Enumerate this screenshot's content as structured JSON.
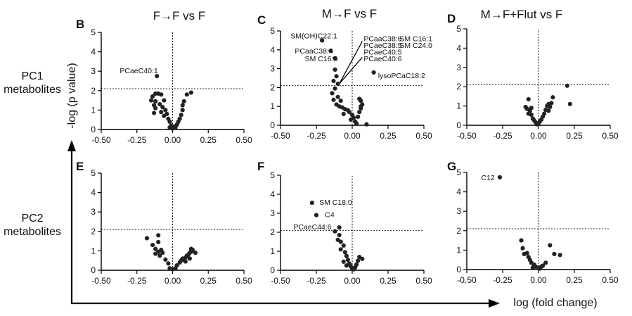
{
  "figure": {
    "column_titles": [
      "F→F vs F",
      "M→F vs F",
      "M→F+Flut vs F"
    ],
    "row_labels": [
      {
        "line1": "PC1",
        "line2": "metabolites"
      },
      {
        "line1": "PC2",
        "line2": "metabolites"
      }
    ],
    "y_axis_label": "-log (p value)",
    "x_axis_label": "log (fold change)",
    "colors": {
      "points": "#222222",
      "axes": "#000000",
      "reference_lines": "#000000"
    }
  },
  "chart_data": [
    {
      "type": "scatter",
      "panel": "B",
      "title": "F→F vs F",
      "xlim": [
        -0.5,
        0.5
      ],
      "ylim": [
        0,
        5
      ],
      "xticks": [
        "-0.50",
        "-0.25",
        "0.00",
        "0.25",
        "0.50"
      ],
      "yticks": [
        "0",
        "1",
        "2",
        "3",
        "4",
        "5"
      ],
      "threshold_y": 2.1,
      "reference_x": 0,
      "points": [
        {
          "x": -0.11,
          "y": 2.75
        },
        {
          "x": -0.12,
          "y": 1.85
        },
        {
          "x": -0.1,
          "y": 1.85
        },
        {
          "x": -0.14,
          "y": 1.7
        },
        {
          "x": -0.08,
          "y": 1.8
        },
        {
          "x": -0.15,
          "y": 1.5
        },
        {
          "x": -0.12,
          "y": 1.45
        },
        {
          "x": -0.06,
          "y": 1.5
        },
        {
          "x": -0.13,
          "y": 1.25
        },
        {
          "x": -0.09,
          "y": 1.3
        },
        {
          "x": -0.07,
          "y": 1.15
        },
        {
          "x": -0.12,
          "y": 1.1
        },
        {
          "x": -0.05,
          "y": 1.0
        },
        {
          "x": -0.13,
          "y": 0.85
        },
        {
          "x": -0.08,
          "y": 0.9
        },
        {
          "x": -0.04,
          "y": 0.8
        },
        {
          "x": -0.06,
          "y": 0.7
        },
        {
          "x": -0.03,
          "y": 0.55
        },
        {
          "x": -0.02,
          "y": 0.4
        },
        {
          "x": -0.01,
          "y": 0.2
        },
        {
          "x": -0.02,
          "y": 0.1
        },
        {
          "x": 0.0,
          "y": 0.05
        },
        {
          "x": 0.01,
          "y": 0.15
        },
        {
          "x": 0.02,
          "y": 0.1
        },
        {
          "x": 0.03,
          "y": 0.25
        },
        {
          "x": 0.04,
          "y": 0.4
        },
        {
          "x": 0.05,
          "y": 0.55
        },
        {
          "x": 0.06,
          "y": 0.75
        },
        {
          "x": 0.07,
          "y": 1.0
        },
        {
          "x": 0.07,
          "y": 1.25
        },
        {
          "x": 0.08,
          "y": 1.45
        },
        {
          "x": 0.1,
          "y": 1.8
        },
        {
          "x": 0.13,
          "y": 1.9
        }
      ],
      "annotations": [
        {
          "text": "PCaeC40:1",
          "x": -0.37,
          "y": 3.05
        }
      ]
    },
    {
      "type": "scatter",
      "panel": "C",
      "title": "M→F vs F",
      "xlim": [
        -0.5,
        0.5
      ],
      "ylim": [
        0,
        5
      ],
      "xticks": [
        "-0.50",
        "-0.25",
        "0.00",
        "0.25",
        "0.50"
      ],
      "yticks": [
        "0",
        "1",
        "2",
        "3",
        "4",
        "5"
      ],
      "threshold_y": 2.1,
      "reference_x": 0,
      "points": [
        {
          "x": -0.21,
          "y": 4.5
        },
        {
          "x": -0.15,
          "y": 3.95
        },
        {
          "x": -0.12,
          "y": 3.55
        },
        {
          "x": 0.15,
          "y": 2.8
        },
        {
          "x": -0.12,
          "y": 2.95
        },
        {
          "x": -0.11,
          "y": 2.6
        },
        {
          "x": -0.13,
          "y": 2.35
        },
        {
          "x": -0.1,
          "y": 2.2
        },
        {
          "x": -0.12,
          "y": 1.95
        },
        {
          "x": -0.14,
          "y": 1.7
        },
        {
          "x": -0.1,
          "y": 1.5
        },
        {
          "x": -0.13,
          "y": 1.35
        },
        {
          "x": -0.08,
          "y": 1.3
        },
        {
          "x": -0.11,
          "y": 1.1
        },
        {
          "x": -0.09,
          "y": 1.0
        },
        {
          "x": -0.07,
          "y": 0.95
        },
        {
          "x": -0.05,
          "y": 0.85
        },
        {
          "x": -0.03,
          "y": 0.8
        },
        {
          "x": -0.02,
          "y": 0.7
        },
        {
          "x": 0.0,
          "y": 0.55
        },
        {
          "x": 0.01,
          "y": 0.4
        },
        {
          "x": -0.01,
          "y": 0.3
        },
        {
          "x": 0.02,
          "y": 0.2
        },
        {
          "x": 0.03,
          "y": 0.1
        },
        {
          "x": 0.04,
          "y": 0.45
        },
        {
          "x": 0.05,
          "y": 0.7
        },
        {
          "x": 0.06,
          "y": 0.9
        },
        {
          "x": 0.07,
          "y": 1.1
        },
        {
          "x": 0.05,
          "y": 1.4
        },
        {
          "x": 0.06,
          "y": 1.0
        },
        {
          "x": 0.06,
          "y": 1.3
        },
        {
          "x": 0.1,
          "y": 0.05
        },
        {
          "x": -0.06,
          "y": 0.6
        }
      ],
      "annotations": [
        {
          "text": "SM(OH)C22:1",
          "x": -0.43,
          "y": 4.75
        },
        {
          "text": "PCaaC38:4",
          "x": -0.4,
          "y": 3.95
        },
        {
          "text": "SM C16:0",
          "x": -0.33,
          "y": 3.55
        },
        {
          "text": "PCaaC38:6",
          "x": 0.08,
          "y": 4.6
        },
        {
          "text": "PCaeC38:5",
          "x": 0.08,
          "y": 4.25
        },
        {
          "text": "PCaeC40:5",
          "x": 0.08,
          "y": 3.9
        },
        {
          "text": "PCaeC40:6",
          "x": 0.08,
          "y": 3.55
        },
        {
          "text": "SM C16:1",
          "x": 0.33,
          "y": 4.6
        },
        {
          "text": "SM C24:0",
          "x": 0.33,
          "y": 4.25
        },
        {
          "text": "lysoPCaC18:2",
          "x": 0.18,
          "y": 2.65
        }
      ],
      "pointer_lines": [
        {
          "from": [
            -0.09,
            2.2
          ],
          "to": [
            0.07,
            4.45
          ]
        },
        {
          "from": [
            -0.09,
            2.2
          ],
          "to": [
            0.07,
            3.6
          ]
        }
      ]
    },
    {
      "type": "scatter",
      "panel": "D",
      "title": "M→F+Flut vs F",
      "xlim": [
        -0.5,
        0.5
      ],
      "ylim": [
        0,
        5
      ],
      "xticks": [
        "-0.50",
        "-0.25",
        "0.00",
        "0.25",
        "0.50"
      ],
      "yticks": [
        "0",
        "1",
        "2",
        "3",
        "4",
        "5"
      ],
      "threshold_y": 2.1,
      "reference_x": 0,
      "points": [
        {
          "x": -0.07,
          "y": 1.35
        },
        {
          "x": -0.09,
          "y": 0.95
        },
        {
          "x": -0.08,
          "y": 0.85
        },
        {
          "x": -0.06,
          "y": 0.75
        },
        {
          "x": -0.05,
          "y": 0.55
        },
        {
          "x": -0.07,
          "y": 0.6
        },
        {
          "x": -0.04,
          "y": 0.35
        },
        {
          "x": -0.03,
          "y": 0.25
        },
        {
          "x": -0.02,
          "y": 0.15
        },
        {
          "x": -0.01,
          "y": 0.05
        },
        {
          "x": 0.0,
          "y": 0.1
        },
        {
          "x": 0.01,
          "y": 0.2
        },
        {
          "x": 0.02,
          "y": 0.3
        },
        {
          "x": 0.03,
          "y": 0.45
        },
        {
          "x": 0.04,
          "y": 0.6
        },
        {
          "x": 0.05,
          "y": 0.8
        },
        {
          "x": 0.06,
          "y": 1.0
        },
        {
          "x": 0.07,
          "y": 1.1
        },
        {
          "x": 0.08,
          "y": 0.95
        },
        {
          "x": 0.09,
          "y": 1.15
        },
        {
          "x": 0.1,
          "y": 1.45
        },
        {
          "x": 0.2,
          "y": 2.05
        },
        {
          "x": 0.22,
          "y": 1.1
        },
        {
          "x": -0.05,
          "y": 0.9
        },
        {
          "x": 0.07,
          "y": 0.75
        }
      ],
      "annotations": []
    },
    {
      "type": "scatter",
      "panel": "E",
      "title": "",
      "xlim": [
        -0.5,
        0.5
      ],
      "ylim": [
        0,
        5
      ],
      "xticks": [
        "-0.50",
        "-0.25",
        "0.00",
        "0.25",
        "0.50"
      ],
      "yticks": [
        "0",
        "1",
        "2",
        "3",
        "4",
        "5"
      ],
      "threshold_y": 2.1,
      "reference_x": 0,
      "points": [
        {
          "x": -0.1,
          "y": 1.8
        },
        {
          "x": -0.18,
          "y": 1.65
        },
        {
          "x": -0.1,
          "y": 1.45
        },
        {
          "x": -0.14,
          "y": 1.3
        },
        {
          "x": -0.12,
          "y": 1.1
        },
        {
          "x": -0.08,
          "y": 1.05
        },
        {
          "x": -0.1,
          "y": 0.95
        },
        {
          "x": -0.12,
          "y": 0.85
        },
        {
          "x": -0.07,
          "y": 0.9
        },
        {
          "x": -0.09,
          "y": 0.75
        },
        {
          "x": -0.05,
          "y": 0.55
        },
        {
          "x": -0.03,
          "y": 0.35
        },
        {
          "x": -0.02,
          "y": 0.1
        },
        {
          "x": 0.0,
          "y": 0.05
        },
        {
          "x": 0.02,
          "y": 0.1
        },
        {
          "x": 0.03,
          "y": 0.25
        },
        {
          "x": 0.05,
          "y": 0.4
        },
        {
          "x": 0.06,
          "y": 0.5
        },
        {
          "x": 0.07,
          "y": 0.6
        },
        {
          "x": 0.08,
          "y": 0.55
        },
        {
          "x": 0.09,
          "y": 0.65
        },
        {
          "x": 0.1,
          "y": 0.75
        },
        {
          "x": 0.11,
          "y": 0.8
        },
        {
          "x": 0.12,
          "y": 0.9
        },
        {
          "x": 0.13,
          "y": 0.95
        },
        {
          "x": 0.14,
          "y": 1.05
        },
        {
          "x": 0.16,
          "y": 0.9
        },
        {
          "x": 0.12,
          "y": 0.6
        },
        {
          "x": 0.09,
          "y": 0.45
        },
        {
          "x": 0.13,
          "y": 1.1
        }
      ],
      "annotations": []
    },
    {
      "type": "scatter",
      "panel": "F",
      "title": "",
      "xlim": [
        -0.5,
        0.5
      ],
      "ylim": [
        0,
        5
      ],
      "xticks": [
        "-0.50",
        "-0.25",
        "0.00",
        "0.25",
        "0.50"
      ],
      "yticks": [
        "0",
        "1",
        "2",
        "3",
        "4",
        "5"
      ],
      "threshold_y": 2.1,
      "reference_x": 0,
      "points": [
        {
          "x": -0.28,
          "y": 3.55
        },
        {
          "x": -0.25,
          "y": 2.9
        },
        {
          "x": -0.09,
          "y": 2.25
        },
        {
          "x": -0.12,
          "y": 2.05
        },
        {
          "x": -0.09,
          "y": 1.85
        },
        {
          "x": -0.1,
          "y": 1.6
        },
        {
          "x": -0.08,
          "y": 1.5
        },
        {
          "x": -0.06,
          "y": 1.3
        },
        {
          "x": -0.08,
          "y": 1.1
        },
        {
          "x": -0.05,
          "y": 0.95
        },
        {
          "x": -0.04,
          "y": 0.75
        },
        {
          "x": -0.03,
          "y": 0.55
        },
        {
          "x": -0.02,
          "y": 0.35
        },
        {
          "x": -0.01,
          "y": 0.2
        },
        {
          "x": 0.0,
          "y": 0.1
        },
        {
          "x": 0.01,
          "y": 0.05
        },
        {
          "x": 0.02,
          "y": 0.15
        },
        {
          "x": 0.03,
          "y": 0.3
        },
        {
          "x": 0.04,
          "y": 0.5
        },
        {
          "x": 0.05,
          "y": 0.7
        },
        {
          "x": 0.07,
          "y": 0.6
        },
        {
          "x": -0.06,
          "y": 0.45
        },
        {
          "x": -0.04,
          "y": 0.25
        }
      ],
      "annotations": [
        {
          "text": "SM C18:0",
          "x": -0.23,
          "y": 3.6
        },
        {
          "text": "C4",
          "x": -0.19,
          "y": 2.95
        },
        {
          "text": "PCaeC44:6",
          "x": -0.41,
          "y": 2.3
        }
      ]
    },
    {
      "type": "scatter",
      "panel": "G",
      "title": "",
      "xlim": [
        -0.5,
        0.5
      ],
      "ylim": [
        0,
        5
      ],
      "xticks": [
        "-0.50",
        "-0.25",
        "0.00",
        "0.25",
        "0.50"
      ],
      "yticks": [
        "0",
        "1",
        "2",
        "3",
        "4",
        "5"
      ],
      "threshold_y": 2.1,
      "reference_x": 0,
      "points": [
        {
          "x": -0.27,
          "y": 4.75
        },
        {
          "x": -0.12,
          "y": 1.5
        },
        {
          "x": -0.11,
          "y": 1.1
        },
        {
          "x": -0.08,
          "y": 0.85
        },
        {
          "x": -0.1,
          "y": 0.8
        },
        {
          "x": -0.07,
          "y": 0.65
        },
        {
          "x": -0.06,
          "y": 0.5
        },
        {
          "x": -0.05,
          "y": 0.35
        },
        {
          "x": -0.03,
          "y": 0.25
        },
        {
          "x": -0.02,
          "y": 0.15
        },
        {
          "x": 0.0,
          "y": 0.1
        },
        {
          "x": 0.01,
          "y": 0.05
        },
        {
          "x": 0.02,
          "y": 0.15
        },
        {
          "x": 0.03,
          "y": 0.2
        },
        {
          "x": 0.05,
          "y": 0.35
        },
        {
          "x": 0.08,
          "y": 1.25
        },
        {
          "x": 0.11,
          "y": 0.8
        },
        {
          "x": 0.15,
          "y": 0.75
        },
        {
          "x": -0.04,
          "y": 0.1
        }
      ],
      "annotations": [
        {
          "text": "C12",
          "x": -0.4,
          "y": 4.75
        }
      ]
    }
  ]
}
